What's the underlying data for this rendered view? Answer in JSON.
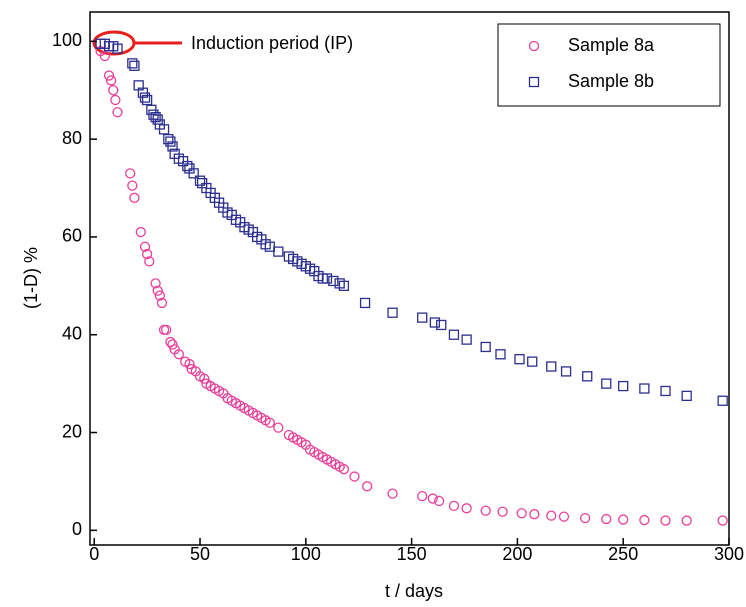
{
  "chart_data": {
    "type": "scatter",
    "xlabel": "t / days",
    "ylabel": "(1-D) %",
    "annotation": "Induction period (IP)",
    "xlim": [
      -2,
      300
    ],
    "xticks": [
      0,
      50,
      100,
      150,
      200,
      250,
      300
    ],
    "ylim": [
      -3,
      106
    ],
    "yticks": [
      0,
      20,
      40,
      60,
      80,
      100
    ],
    "legend": "upper right",
    "series": [
      {
        "name": "Sample 8a",
        "color": "#e8409a",
        "marker": "circle",
        "x": [
          3,
          5,
          7,
          8,
          9,
          10,
          11,
          17,
          18,
          19,
          22,
          24,
          25,
          26,
          29,
          30,
          31,
          32,
          33,
          34,
          36,
          37,
          38,
          40,
          43,
          45,
          46,
          48,
          50,
          52,
          53,
          55,
          57,
          59,
          61,
          63,
          65,
          67,
          69,
          71,
          73,
          75,
          77,
          79,
          81,
          83,
          87,
          92,
          94,
          96,
          98,
          100,
          102,
          104,
          106,
          108,
          110,
          112,
          114,
          116,
          118,
          123,
          129,
          141,
          155,
          160,
          163,
          170,
          176,
          185,
          193,
          202,
          208,
          216,
          222,
          232,
          242,
          250,
          260,
          270,
          280,
          297
        ],
        "values": [
          98,
          97,
          93,
          92,
          90,
          88,
          85.5,
          73,
          70.5,
          68,
          61,
          58,
          56.5,
          55,
          50.5,
          49,
          48,
          46.5,
          41,
          41,
          38.5,
          38,
          37,
          36,
          34.5,
          34,
          33,
          32.5,
          31.5,
          31,
          30,
          29.5,
          29,
          28.5,
          28,
          27,
          26.5,
          26,
          25.5,
          25,
          24.5,
          24,
          23.5,
          23,
          22.5,
          22,
          21,
          19.5,
          19,
          18.5,
          18,
          17.5,
          16.5,
          16,
          15.5,
          15,
          14.5,
          14,
          13.5,
          13,
          12.5,
          11,
          9,
          7.5,
          7,
          6.5,
          6,
          5,
          4.5,
          4,
          3.8,
          3.5,
          3.3,
          3,
          2.8,
          2.5,
          2.3,
          2.2,
          2.1,
          2,
          2,
          2
        ]
      },
      {
        "name": "Sample 8b",
        "color": "#2b2f8f",
        "marker": "square",
        "x": [
          3,
          5,
          7,
          9,
          11,
          18,
          19,
          21,
          23,
          24,
          25,
          27,
          28,
          29,
          30,
          31,
          33,
          35,
          36,
          37,
          38,
          40,
          42,
          44,
          45,
          47,
          50,
          51,
          53,
          55,
          57,
          59,
          61,
          63,
          65,
          67,
          69,
          71,
          73,
          75,
          77,
          79,
          81,
          83,
          87,
          92,
          94,
          96,
          98,
          100,
          102,
          104,
          106,
          108,
          110,
          113,
          116,
          118,
          128,
          141,
          155,
          161,
          164,
          170,
          176,
          185,
          192,
          201,
          207,
          216,
          223,
          233,
          242,
          250,
          260,
          270,
          280,
          297
        ],
        "values": [
          99.5,
          99.5,
          99,
          99,
          98.5,
          95.5,
          95,
          91,
          89.5,
          88.5,
          88,
          86,
          85,
          84.5,
          84,
          83,
          82,
          80,
          79.5,
          78.5,
          77,
          76,
          75.5,
          74.5,
          74,
          73,
          71.5,
          71,
          70,
          69,
          68,
          67,
          66,
          65,
          64.5,
          63.5,
          63,
          62,
          61.5,
          61,
          60,
          59.5,
          58.5,
          58,
          57,
          56,
          55.5,
          55,
          54.5,
          54,
          53.5,
          53,
          52,
          51.5,
          51.5,
          51,
          50.5,
          50,
          46.5,
          44.5,
          43.5,
          42.5,
          42,
          40,
          39,
          37.5,
          36,
          35,
          34.5,
          33.5,
          32.5,
          31.5,
          30,
          29.5,
          29,
          28.5,
          27.5,
          26.5
        ]
      }
    ]
  }
}
